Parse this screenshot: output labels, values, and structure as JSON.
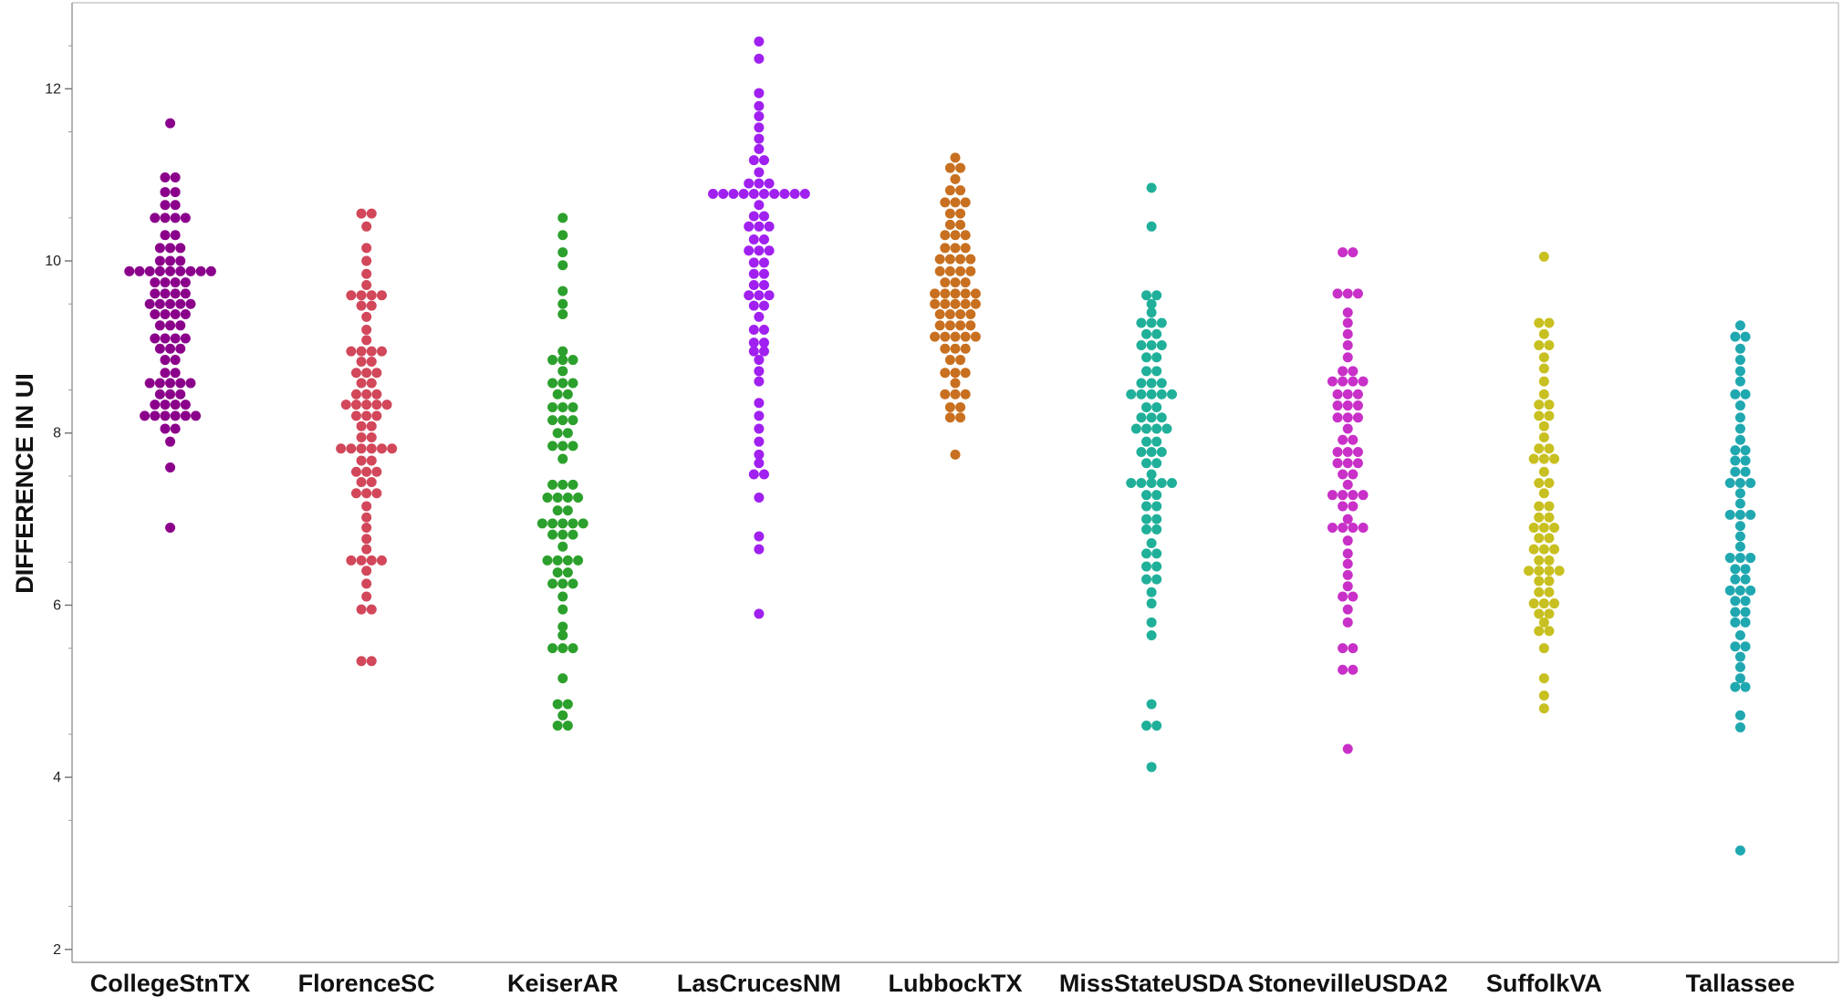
{
  "chart_data": {
    "type": "scatter",
    "subtype": "beeswarm",
    "title": "",
    "xlabel": "",
    "ylabel": "DIFFERENCE IN UI",
    "ylim": [
      1.85,
      13.0
    ],
    "yticks": [
      2,
      4,
      6,
      8,
      10,
      12
    ],
    "grid": false,
    "legend": "none",
    "categories": [
      "CollegeStnTX",
      "FlorenceSC",
      "KeiserAR",
      "LasCrucesNM",
      "LubbockTX",
      "MissStateUSDA",
      "StonevilleUSDA2",
      "SuffolkVA",
      "Tallassee"
    ],
    "series": [
      {
        "color": "#8b008b",
        "values": [
          11.6,
          10.97,
          10.97,
          10.8,
          10.8,
          10.65,
          10.65,
          10.5,
          10.5,
          10.5,
          10.5,
          10.3,
          10.3,
          10.15,
          10.15,
          10.15,
          10.0,
          10.0,
          10.0,
          9.88,
          9.88,
          9.88,
          9.88,
          9.88,
          9.88,
          9.88,
          9.88,
          9.88,
          9.75,
          9.75,
          9.75,
          9.75,
          9.62,
          9.62,
          9.62,
          9.62,
          9.5,
          9.5,
          9.5,
          9.5,
          9.5,
          9.38,
          9.38,
          9.38,
          9.38,
          9.25,
          9.25,
          9.25,
          9.1,
          9.1,
          9.1,
          9.1,
          8.98,
          8.98,
          8.98,
          8.85,
          8.85,
          8.7,
          8.7,
          8.58,
          8.58,
          8.58,
          8.58,
          8.58,
          8.45,
          8.45,
          8.45,
          8.33,
          8.33,
          8.33,
          8.33,
          8.2,
          8.2,
          8.2,
          8.2,
          8.2,
          8.2,
          8.05,
          8.05,
          7.9,
          7.6,
          6.9
        ]
      },
      {
        "color": "#d2475a",
        "values": [
          10.55,
          10.55,
          10.4,
          10.15,
          10.0,
          9.85,
          9.72,
          9.6,
          9.6,
          9.6,
          9.6,
          9.48,
          9.48,
          9.35,
          9.2,
          9.08,
          8.95,
          8.95,
          8.95,
          8.95,
          8.83,
          8.83,
          8.7,
          8.7,
          8.7,
          8.58,
          8.58,
          8.45,
          8.45,
          8.45,
          8.33,
          8.33,
          8.33,
          8.33,
          8.33,
          8.2,
          8.2,
          8.2,
          8.08,
          8.08,
          7.95,
          7.95,
          7.82,
          7.82,
          7.82,
          7.82,
          7.82,
          7.82,
          7.68,
          7.68,
          7.55,
          7.55,
          7.55,
          7.43,
          7.43,
          7.3,
          7.3,
          7.3,
          7.15,
          7.02,
          6.9,
          6.77,
          6.65,
          6.52,
          6.52,
          6.52,
          6.52,
          6.4,
          6.25,
          6.1,
          5.95,
          5.95,
          5.35,
          5.35
        ]
      },
      {
        "color": "#2ca02c",
        "values": [
          10.5,
          10.3,
          10.1,
          9.95,
          9.65,
          9.5,
          9.38,
          8.95,
          8.85,
          8.85,
          8.85,
          8.72,
          8.58,
          8.58,
          8.58,
          8.45,
          8.45,
          8.3,
          8.3,
          8.3,
          8.15,
          8.15,
          8.15,
          8.0,
          8.0,
          7.85,
          7.85,
          7.85,
          7.7,
          7.4,
          7.4,
          7.4,
          7.25,
          7.25,
          7.25,
          7.25,
          7.1,
          7.1,
          6.95,
          6.95,
          6.95,
          6.95,
          6.95,
          6.82,
          6.82,
          6.82,
          6.68,
          6.52,
          6.52,
          6.52,
          6.52,
          6.38,
          6.38,
          6.25,
          6.25,
          6.25,
          6.1,
          5.95,
          5.75,
          5.65,
          5.5,
          5.5,
          5.5,
          5.15,
          4.85,
          4.85,
          4.72,
          4.6,
          4.6
        ]
      },
      {
        "color": "#a020f0",
        "values": [
          12.55,
          12.35,
          11.95,
          11.8,
          11.68,
          11.55,
          11.42,
          11.3,
          11.17,
          11.17,
          11.03,
          10.9,
          10.9,
          10.9,
          10.78,
          10.78,
          10.78,
          10.78,
          10.78,
          10.78,
          10.78,
          10.78,
          10.78,
          10.78,
          10.65,
          10.52,
          10.52,
          10.4,
          10.4,
          10.4,
          10.25,
          10.25,
          10.12,
          10.12,
          10.12,
          9.98,
          9.98,
          9.85,
          9.85,
          9.72,
          9.72,
          9.6,
          9.6,
          9.6,
          9.48,
          9.48,
          9.35,
          9.2,
          9.2,
          9.05,
          9.05,
          8.95,
          8.95,
          8.85,
          8.72,
          8.6,
          8.35,
          8.2,
          8.05,
          7.9,
          7.75,
          7.65,
          7.52,
          7.52,
          7.25,
          6.8,
          6.65,
          5.9
        ]
      },
      {
        "color": "#c87020",
        "values": [
          11.2,
          11.08,
          11.08,
          10.95,
          10.82,
          10.82,
          10.68,
          10.68,
          10.68,
          10.55,
          10.55,
          10.42,
          10.42,
          10.3,
          10.3,
          10.3,
          10.15,
          10.15,
          10.15,
          10.02,
          10.02,
          10.02,
          10.02,
          9.88,
          9.88,
          9.88,
          9.88,
          9.75,
          9.75,
          9.75,
          9.62,
          9.62,
          9.62,
          9.62,
          9.62,
          9.5,
          9.5,
          9.5,
          9.5,
          9.5,
          9.38,
          9.38,
          9.38,
          9.38,
          9.25,
          9.25,
          9.25,
          9.25,
          9.12,
          9.12,
          9.12,
          9.12,
          9.12,
          8.98,
          8.98,
          8.98,
          8.85,
          8.85,
          8.7,
          8.7,
          8.7,
          8.58,
          8.45,
          8.45,
          8.45,
          8.3,
          8.3,
          8.18,
          8.18,
          7.75
        ]
      },
      {
        "color": "#20b09a",
        "values": [
          10.85,
          10.4,
          9.6,
          9.6,
          9.5,
          9.4,
          9.28,
          9.28,
          9.28,
          9.15,
          9.15,
          9.02,
          9.02,
          9.02,
          8.88,
          8.88,
          8.72,
          8.72,
          8.58,
          8.58,
          8.58,
          8.45,
          8.45,
          8.45,
          8.45,
          8.45,
          8.3,
          8.3,
          8.18,
          8.18,
          8.18,
          8.05,
          8.05,
          8.05,
          8.05,
          7.9,
          7.9,
          7.78,
          7.78,
          7.78,
          7.65,
          7.65,
          7.52,
          7.42,
          7.42,
          7.42,
          7.42,
          7.42,
          7.28,
          7.28,
          7.15,
          7.15,
          7.0,
          7.0,
          6.88,
          6.88,
          6.72,
          6.6,
          6.6,
          6.45,
          6.45,
          6.3,
          6.3,
          6.15,
          6.02,
          5.8,
          5.65,
          4.85,
          4.6,
          4.6,
          4.12
        ]
      },
      {
        "color": "#c830c8",
        "values": [
          10.1,
          10.1,
          9.62,
          9.62,
          9.62,
          9.4,
          9.28,
          9.15,
          9.02,
          8.88,
          8.72,
          8.72,
          8.6,
          8.6,
          8.6,
          8.6,
          8.45,
          8.45,
          8.45,
          8.32,
          8.32,
          8.32,
          8.18,
          8.18,
          8.18,
          8.05,
          7.92,
          7.92,
          7.78,
          7.78,
          7.78,
          7.65,
          7.65,
          7.65,
          7.52,
          7.52,
          7.4,
          7.28,
          7.28,
          7.28,
          7.28,
          7.15,
          7.15,
          7.0,
          6.9,
          6.9,
          6.9,
          6.9,
          6.75,
          6.6,
          6.48,
          6.35,
          6.22,
          6.1,
          6.1,
          5.95,
          5.8,
          5.5,
          5.5,
          5.25,
          5.25,
          4.33
        ]
      },
      {
        "color": "#c8c020",
        "values": [
          10.05,
          9.28,
          9.28,
          9.15,
          9.02,
          9.02,
          8.88,
          8.75,
          8.6,
          8.45,
          8.33,
          8.33,
          8.2,
          8.2,
          8.08,
          7.95,
          7.82,
          7.82,
          7.7,
          7.7,
          7.7,
          7.55,
          7.42,
          7.42,
          7.3,
          7.15,
          7.15,
          7.02,
          7.02,
          6.9,
          6.9,
          6.9,
          6.78,
          6.78,
          6.65,
          6.65,
          6.65,
          6.52,
          6.52,
          6.4,
          6.4,
          6.4,
          6.4,
          6.28,
          6.28,
          6.15,
          6.15,
          6.02,
          6.02,
          6.02,
          5.9,
          5.9,
          5.8,
          5.7,
          5.7,
          5.5,
          5.15,
          4.95,
          4.8
        ]
      },
      {
        "color": "#20a8b0",
        "values": [
          9.25,
          9.12,
          9.12,
          8.98,
          8.85,
          8.72,
          8.6,
          8.45,
          8.45,
          8.32,
          8.18,
          8.05,
          7.92,
          7.8,
          7.8,
          7.68,
          7.68,
          7.55,
          7.55,
          7.42,
          7.42,
          7.42,
          7.3,
          7.18,
          7.05,
          7.05,
          7.05,
          6.92,
          6.8,
          6.68,
          6.55,
          6.55,
          6.55,
          6.42,
          6.42,
          6.3,
          6.3,
          6.17,
          6.17,
          6.17,
          6.05,
          6.05,
          5.92,
          5.92,
          5.8,
          5.8,
          5.65,
          5.52,
          5.52,
          5.4,
          5.28,
          5.15,
          5.05,
          5.05,
          4.72,
          4.58,
          3.15
        ]
      }
    ]
  }
}
